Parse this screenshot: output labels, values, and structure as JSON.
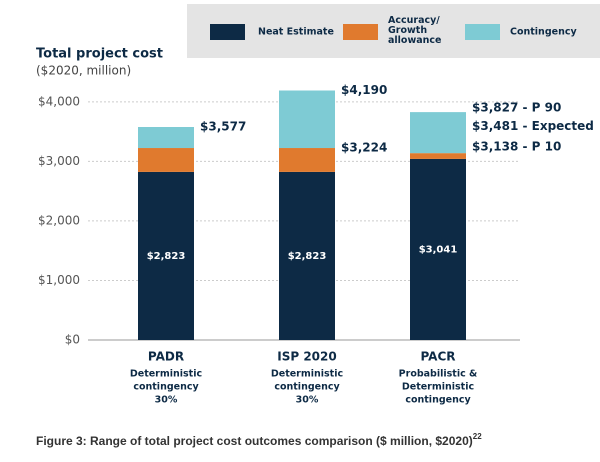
{
  "chart_data": {
    "type": "stacked_bar",
    "title": "Total project cost",
    "subtitle": "($2020, million)",
    "caption": "Figure 3: Range of total project cost outcomes comparison ($ million, $2020)",
    "caption_ref": "22",
    "categories": [
      "PADR",
      "ISP 2020",
      "PACR"
    ],
    "category_notes": [
      [
        "Deterministic",
        "contingency",
        "30%"
      ],
      [
        "Deterministic",
        "contingency",
        "30%"
      ],
      [
        "Probabilistic &",
        "Deterministic",
        "contingency"
      ]
    ],
    "series": [
      {
        "name": "Neat Estimate",
        "color": "#0d2a45",
        "values": [
          2823,
          2823,
          3041
        ],
        "value_labels": [
          "$2,823",
          "$2,823",
          "$3,041"
        ]
      },
      {
        "name": "Accuracy/ Growth allowance",
        "color": "#e07a2e",
        "values": [
          401,
          401,
          97
        ]
      },
      {
        "name": "Contingency",
        "color": "#7ecbd4",
        "values": [
          353,
          966,
          689
        ]
      }
    ],
    "annotations": [
      {
        "category": "PADR",
        "value": 3577,
        "label": "$3,577"
      },
      {
        "category": "ISP 2020",
        "value": 4190,
        "label": "$4,190"
      },
      {
        "category": "ISP 2020",
        "value": 3224,
        "label": "$3,224"
      },
      {
        "category": "PACR",
        "value": 3827,
        "label": "$3,827 - P 90"
      },
      {
        "category": "PACR",
        "value": 3481,
        "label": "$3,481 - Expected"
      },
      {
        "category": "PACR",
        "value": 3138,
        "label": "$3,138 - P 10"
      }
    ],
    "ylim": [
      0,
      4400
    ],
    "yticks": [
      {
        "value": 0,
        "label": "$0"
      },
      {
        "value": 1000,
        "label": "$1,000"
      },
      {
        "value": 2000,
        "label": "$2,000"
      },
      {
        "value": 3000,
        "label": "$3,000"
      },
      {
        "value": 4000,
        "label": "$4,000"
      }
    ],
    "grid": true
  }
}
